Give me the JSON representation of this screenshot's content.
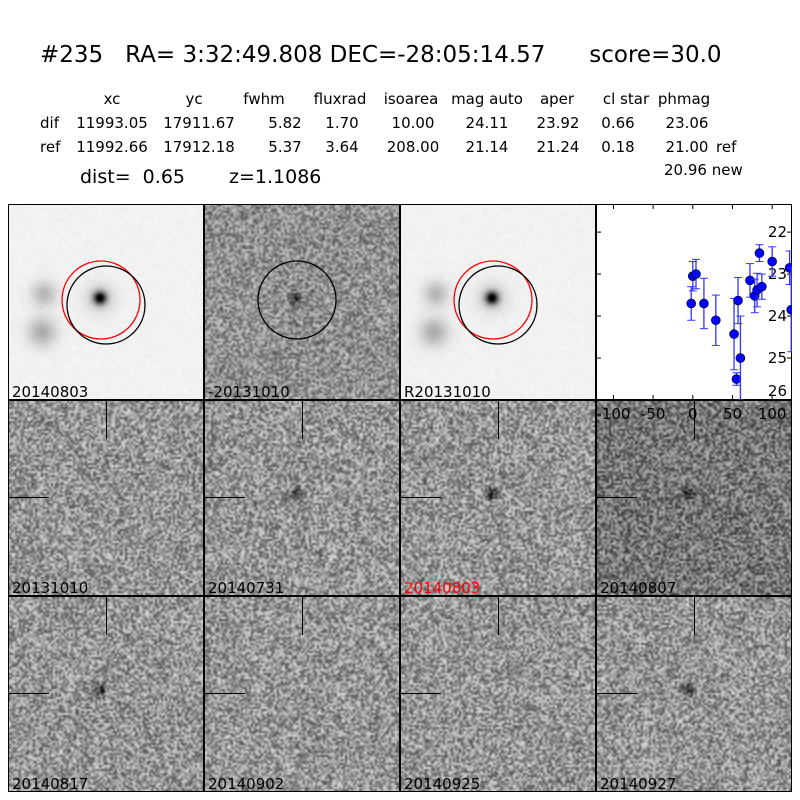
{
  "title": "#235   RA= 3:32:49.808 DEC=-28:05:14.57      score=30.0",
  "table": {
    "headers": [
      "xc",
      "yc",
      "fwhm",
      "fluxrad",
      "isoarea",
      "mag auto",
      "aper",
      "cl star",
      "phmag"
    ],
    "rows": [
      {
        "label": "dif",
        "values": [
          "11993.05",
          "17911.67",
          "5.82",
          "1.70",
          "10.00",
          "24.11",
          "23.92",
          "0.66",
          "23.06"
        ],
        "suffix": ""
      },
      {
        "label": "ref",
        "values": [
          "11992.66",
          "17912.18",
          "5.37",
          "3.64",
          "208.00",
          "21.14",
          "21.24",
          "0.18",
          "21.00"
        ],
        "suffix": "ref"
      }
    ],
    "new_phmag": "20.96 new"
  },
  "dist": "dist=  0.65",
  "z": "z=1.1086",
  "stamps": [
    {
      "label": "20140803",
      "kind": "new",
      "circles": [
        "#ff0000",
        "#000000"
      ]
    },
    {
      "label": "-20131010",
      "kind": "diff",
      "circles": [
        "#000000"
      ]
    },
    {
      "label": "R20131010",
      "kind": "ref",
      "circles": [
        "#ff0000",
        "#000000"
      ]
    },
    {
      "label": "20131010",
      "kind": "noise"
    },
    {
      "label": "20140731",
      "kind": "noise-star"
    },
    {
      "label": "20140803",
      "kind": "noise-star",
      "label_color": "#ff0000"
    },
    {
      "label": "20140807",
      "kind": "noise-dark"
    },
    {
      "label": "20140817",
      "kind": "noise-star"
    },
    {
      "label": "20140902",
      "kind": "noise"
    },
    {
      "label": "20140925",
      "kind": "noise"
    },
    {
      "label": "20140927",
      "kind": "noise-star"
    }
  ],
  "chart_data": {
    "type": "scatter",
    "xlim": [
      -122,
      125
    ],
    "ylim": [
      26,
      21.33
    ],
    "y_inverted": true,
    "xticks": [
      -100,
      -50,
      0,
      50,
      100
    ],
    "yticks": [
      22,
      23,
      24,
      25,
      26
    ],
    "marker_color": "#0000ff",
    "errorbar_color": "#3333ff",
    "points": [
      {
        "x": -2,
        "y": 23.7,
        "err": 0.4
      },
      {
        "x": 0,
        "y": 23.05,
        "err": 0.35
      },
      {
        "x": 4,
        "y": 23.0,
        "err": 0.35
      },
      {
        "x": 14,
        "y": 23.7,
        "err": 0.6
      },
      {
        "x": 29,
        "y": 24.1,
        "err": 0.6
      },
      {
        "x": 52,
        "y": 24.43,
        "err": 0.85
      },
      {
        "x": 57,
        "y": 23.63,
        "err": 0.55
      },
      {
        "x": 55,
        "y": 25.5,
        "err": 0.15
      },
      {
        "x": 60,
        "y": 25.0,
        "err": 1.0
      },
      {
        "x": 72,
        "y": 23.15,
        "err": 0.4
      },
      {
        "x": 78,
        "y": 23.52,
        "err": 0.4
      },
      {
        "x": 81,
        "y": 23.38,
        "err": 0.4
      },
      {
        "x": 87,
        "y": 23.3,
        "err": 0.3
      },
      {
        "x": 84,
        "y": 22.5,
        "err": 0.2
      },
      {
        "x": 100,
        "y": 22.7,
        "err": 0.35
      },
      {
        "x": 122,
        "y": 22.85,
        "err": 0.4
      },
      {
        "x": 124,
        "y": 23.85,
        "err": 1.0
      }
    ]
  }
}
